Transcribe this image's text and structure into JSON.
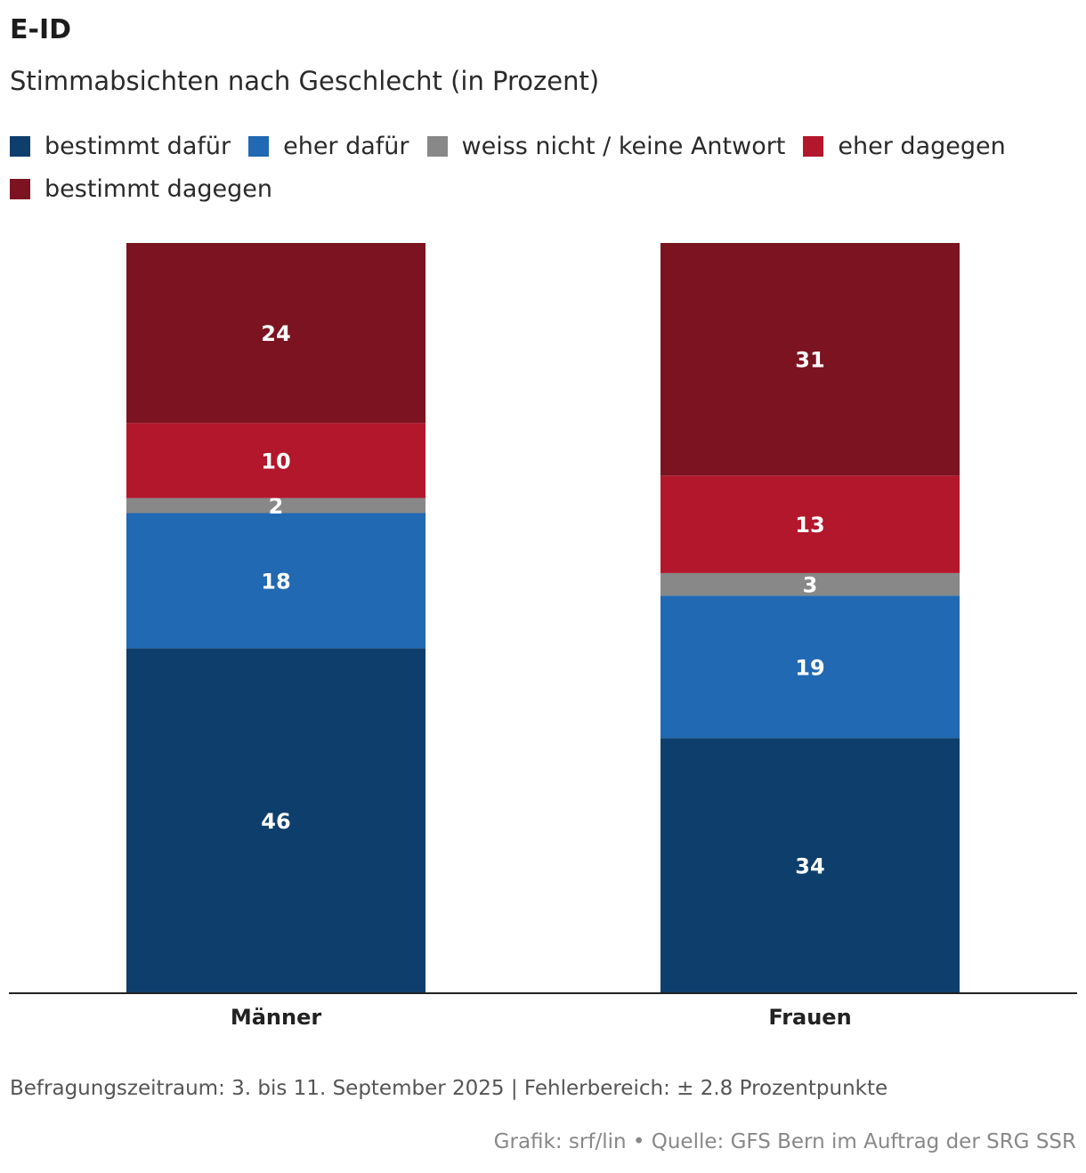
{
  "header": {
    "title": "E-ID",
    "subtitle": "Stimmabsichten nach Geschlecht (in Prozent)"
  },
  "legend": {
    "rows": [
      [
        {
          "label": "bestimmt dafür",
          "color": "#0e3f6c"
        },
        {
          "label": "eher dafür",
          "color": "#2169b2"
        },
        {
          "label": "weiss nicht / keine Antwort",
          "color": "#888888"
        },
        {
          "label": "eher dagegen",
          "color": "#b3172c"
        }
      ],
      [
        {
          "label": "bestimmt dagegen",
          "color": "#7b1420"
        }
      ]
    ]
  },
  "chart_data": {
    "type": "bar",
    "stacked": true,
    "categories": [
      "Männer",
      "Frauen"
    ],
    "series": [
      {
        "name": "bestimmt dafür",
        "color": "#0e3f6c",
        "values": [
          46,
          34
        ]
      },
      {
        "name": "eher dafür",
        "color": "#2169b2",
        "values": [
          18,
          19
        ]
      },
      {
        "name": "weiss nicht / keine Antwort",
        "color": "#888888",
        "values": [
          2,
          3
        ]
      },
      {
        "name": "eher dagegen",
        "color": "#b3172c",
        "values": [
          10,
          13
        ]
      },
      {
        "name": "bestimmt dagegen",
        "color": "#7b1420",
        "values": [
          24,
          31
        ]
      }
    ],
    "ylim": [
      0,
      100
    ],
    "grid": false
  },
  "footer": {
    "note": "Befragungszeitraum: 3. bis 11. September 2025 | Fehlerbereich: ± 2.8 Prozentpunkte",
    "source": "Grafik: srf/lin • Quelle: GFS Bern im Auftrag der SRG SSR"
  }
}
